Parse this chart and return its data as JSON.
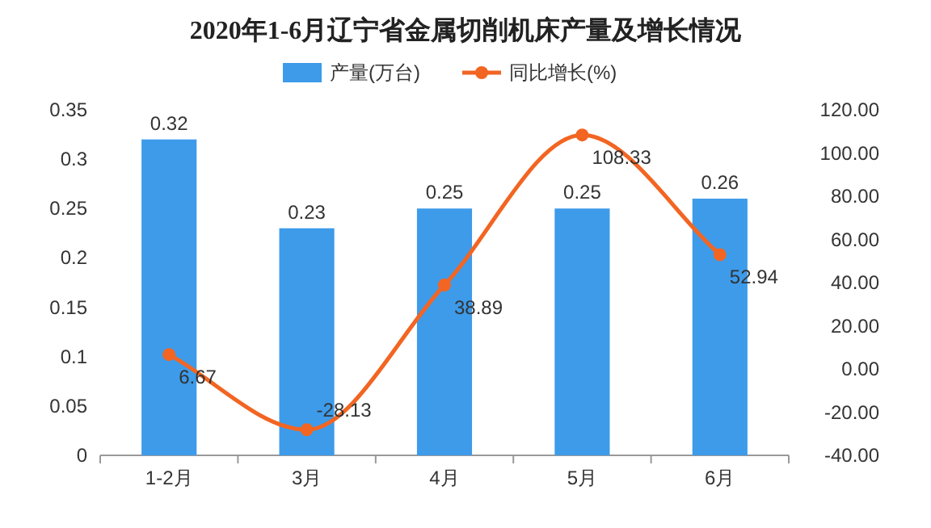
{
  "chart_data": {
    "type": "bar",
    "title": "2020年1-6月辽宁省金属切削机床产量及增长情况",
    "categories": [
      "1-2月",
      "3月",
      "4月",
      "5月",
      "6月"
    ],
    "series": [
      {
        "name": "产量(万台)",
        "color": "#3d9bea",
        "values": [
          0.32,
          0.23,
          0.25,
          0.25,
          0.26
        ]
      },
      {
        "name": "同比增长(%)",
        "type": "line",
        "axis": "y2",
        "color": "#f26522",
        "marker": "circle",
        "values": [
          6.67,
          -28.13,
          38.89,
          108.33,
          52.94
        ]
      }
    ],
    "ylim": [
      0,
      0.35
    ],
    "yticks": [
      0,
      0.05,
      0.1,
      0.15,
      0.2,
      0.25,
      0.3,
      0.35
    ],
    "y2lim": [
      -40,
      120
    ],
    "y2ticks": [
      {
        "value": -40,
        "label": "-40.00"
      },
      {
        "value": -20,
        "label": "-20.00"
      },
      {
        "value": 0,
        "label": "0.00"
      },
      {
        "value": 20,
        "label": "20.00"
      },
      {
        "value": 40,
        "label": "40.00"
      },
      {
        "value": 60,
        "label": "60.00"
      },
      {
        "value": 80,
        "label": "80.00"
      },
      {
        "value": 100,
        "label": "100.00"
      },
      {
        "value": 120,
        "label": "120.00"
      }
    ],
    "data_labels": true,
    "legend": "top",
    "grid": false
  }
}
